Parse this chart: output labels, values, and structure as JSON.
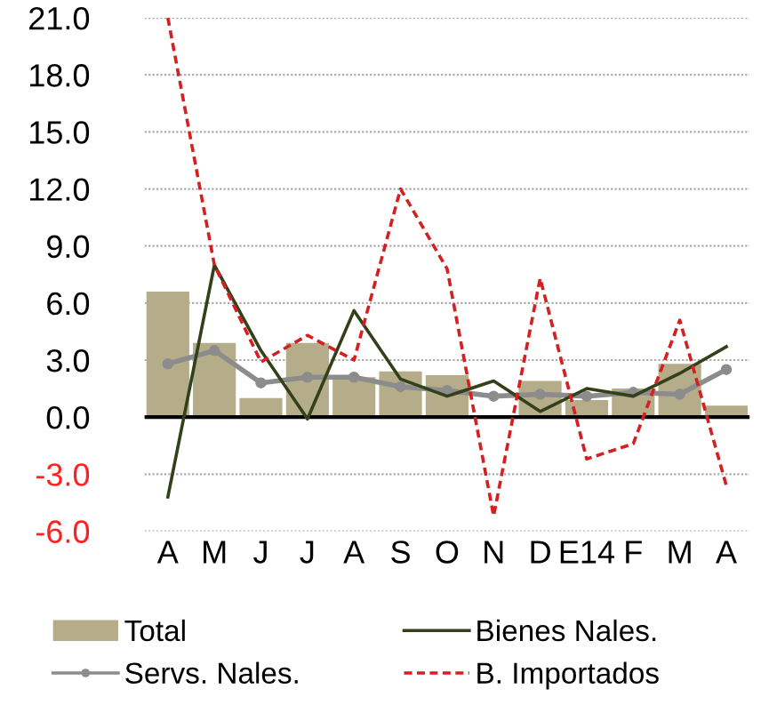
{
  "chart_data": {
    "type": "bar",
    "categories": [
      "A",
      "M",
      "J",
      "J",
      "A",
      "S",
      "O",
      "N",
      "D",
      "E14",
      "F",
      "M",
      "A"
    ],
    "series": [
      {
        "name": "Total",
        "color": "#b5ad8a",
        "values": [
          6.6,
          3.9,
          1.0,
          3.9,
          2.1,
          2.4,
          2.2,
          0.1,
          1.9,
          0.9,
          1.5,
          2.8,
          0.6
        ]
      },
      {
        "name": "Servs. Nales.",
        "type": "line",
        "color": "#8c8c8c",
        "marker": "circle",
        "line_style": "solid",
        "values": [
          2.8,
          3.5,
          1.8,
          2.1,
          2.1,
          1.6,
          1.4,
          1.1,
          1.2,
          1.1,
          1.3,
          1.2,
          2.5
        ]
      },
      {
        "name": "Bienes Nales.",
        "type": "line",
        "color": "#33401a",
        "marker": "none",
        "line_style": "solid",
        "values": [
          -4.2,
          8.0,
          3.5,
          -0.1,
          5.6,
          2.0,
          1.1,
          1.9,
          0.3,
          1.5,
          1.1,
          2.3,
          3.7
        ]
      },
      {
        "name": "B. Importados",
        "type": "line",
        "color": "#d42020",
        "marker": "none",
        "line_style": "dashed",
        "values": [
          21.0,
          8.0,
          2.9,
          4.3,
          3.0,
          12.0,
          7.8,
          -5.2,
          7.3,
          -2.2,
          -1.4,
          5.1,
          -3.6
        ]
      }
    ],
    "ylim": [
      -6,
      21
    ],
    "yticks": [
      {
        "value": -6,
        "label": "-6.0"
      },
      {
        "value": -3,
        "label": "-3.0"
      },
      {
        "value": 0,
        "label": "0.0"
      },
      {
        "value": 3,
        "label": "3.0"
      },
      {
        "value": 6,
        "label": "6.0"
      },
      {
        "value": 9,
        "label": "9.0"
      },
      {
        "value": 12,
        "label": "12.0"
      },
      {
        "value": 15,
        "label": "15.0"
      },
      {
        "value": 18,
        "label": "18.0"
      },
      {
        "value": 21,
        "label": "21.0"
      }
    ],
    "grid": "y",
    "legend": "bottom"
  }
}
